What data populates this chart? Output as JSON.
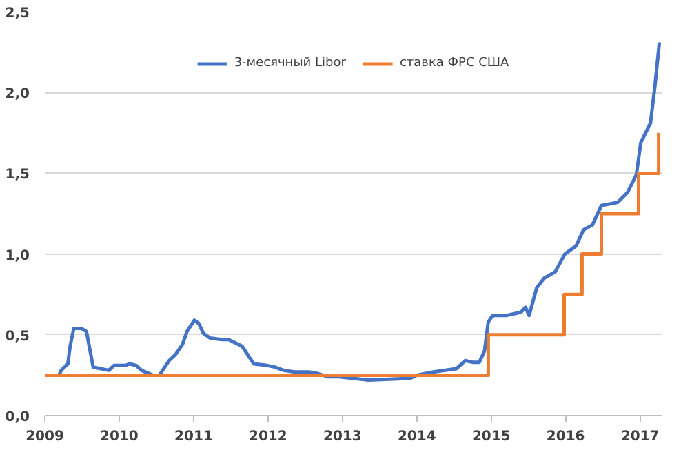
{
  "chart_data": {
    "type": "line",
    "xlim": [
      2009,
      2017.3
    ],
    "xticks": [
      2009,
      2010,
      2011,
      2012,
      2013,
      2014,
      2015,
      2016,
      2017
    ],
    "ylim": [
      0,
      2.5
    ],
    "yticks": [
      {
        "value": 0,
        "label": "0,0"
      },
      {
        "value": 0.5,
        "label": "0,5"
      },
      {
        "value": 1,
        "label": "1,0"
      },
      {
        "value": 1.5,
        "label": "1,5"
      },
      {
        "value": 2,
        "label": "2,0"
      },
      {
        "value": 2.5,
        "label": "2,5"
      }
    ],
    "grid": "y",
    "legend": "top",
    "series": [
      {
        "name": "3-месячный Libor",
        "color": "#4472c4",
        "x": [
          2009.0,
          2009.19,
          2009.22,
          2009.31,
          2009.34,
          2009.39,
          2009.49,
          2009.56,
          2009.65,
          2009.86,
          2009.93,
          2010.08,
          2010.14,
          2010.23,
          2010.3,
          2010.45,
          2010.54,
          2010.67,
          2010.76,
          2010.85,
          2010.91,
          2011.01,
          2011.07,
          2011.13,
          2011.22,
          2011.38,
          2011.47,
          2011.56,
          2011.65,
          2011.75,
          2011.81,
          2011.99,
          2012.09,
          2012.21,
          2012.36,
          2012.55,
          2012.67,
          2012.8,
          2012.95,
          2013.35,
          2013.91,
          2014.0,
          2014.22,
          2014.53,
          2014.65,
          2014.75,
          2014.84,
          2014.91,
          2014.96,
          2015.02,
          2015.21,
          2015.4,
          2015.46,
          2015.51,
          2015.61,
          2015.71,
          2015.86,
          2015.99,
          2016.14,
          2016.24,
          2016.36,
          2016.48,
          2016.7,
          2016.83,
          2016.95,
          2017.01,
          2017.14,
          2017.2,
          2017.26
        ],
        "values": [
          0.25,
          0.25,
          0.28,
          0.32,
          0.43,
          0.54,
          0.54,
          0.52,
          0.3,
          0.28,
          0.31,
          0.31,
          0.32,
          0.31,
          0.28,
          0.25,
          0.25,
          0.34,
          0.38,
          0.44,
          0.52,
          0.59,
          0.57,
          0.51,
          0.48,
          0.47,
          0.47,
          0.45,
          0.43,
          0.36,
          0.32,
          0.31,
          0.3,
          0.28,
          0.27,
          0.27,
          0.26,
          0.24,
          0.24,
          0.22,
          0.23,
          0.25,
          0.27,
          0.29,
          0.34,
          0.33,
          0.33,
          0.4,
          0.58,
          0.62,
          0.62,
          0.64,
          0.67,
          0.62,
          0.79,
          0.85,
          0.89,
          1.0,
          1.05,
          1.15,
          1.18,
          1.3,
          1.32,
          1.38,
          1.49,
          1.69,
          1.81,
          2.04,
          2.31
        ]
      },
      {
        "name": "ставка ФРС США",
        "color": "#ed7d31",
        "type": "step",
        "x": [
          2009.0,
          2014.96,
          2015.98,
          2016.22,
          2016.48,
          2016.98,
          2017.25
        ],
        "values": [
          0.25,
          0.5,
          0.75,
          1.0,
          1.25,
          1.5,
          1.75
        ]
      }
    ]
  }
}
